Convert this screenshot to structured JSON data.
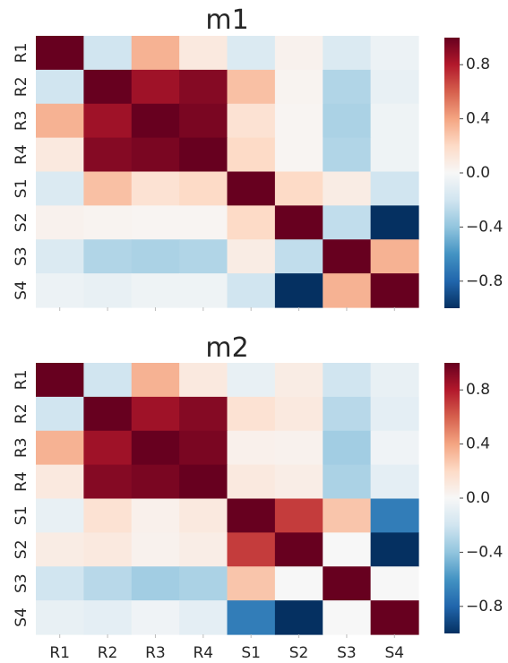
{
  "chart_data": [
    {
      "type": "heatmap",
      "title": "m1",
      "rows": [
        "R1",
        "R2",
        "R3",
        "R4",
        "S1",
        "S2",
        "S3",
        "S4"
      ],
      "cols": [
        "R1",
        "R2",
        "R3",
        "R4",
        "S1",
        "S2",
        "S3",
        "S4"
      ],
      "show_x_tick_labels": false,
      "values": [
        [
          1.0,
          -0.2,
          0.35,
          0.1,
          -0.15,
          0.04,
          -0.15,
          -0.06
        ],
        [
          -0.2,
          1.0,
          0.85,
          0.92,
          0.3,
          0.03,
          -0.3,
          -0.08
        ],
        [
          0.35,
          0.85,
          1.0,
          0.95,
          0.15,
          0.02,
          -0.32,
          -0.05
        ],
        [
          0.1,
          0.92,
          0.95,
          1.0,
          0.2,
          0.02,
          -0.3,
          -0.05
        ],
        [
          -0.15,
          0.3,
          0.15,
          0.2,
          1.0,
          0.2,
          0.08,
          -0.2
        ],
        [
          0.04,
          0.03,
          0.02,
          0.02,
          0.2,
          1.0,
          -0.25,
          -1.0
        ],
        [
          -0.15,
          -0.3,
          -0.32,
          -0.3,
          0.08,
          -0.25,
          1.0,
          0.35
        ],
        [
          -0.06,
          -0.08,
          -0.05,
          -0.05,
          -0.2,
          -1.0,
          0.35,
          1.0
        ]
      ],
      "vmin": -1,
      "vmax": 1,
      "colormap": "RdBu_r",
      "colorbar_ticks": [
        0.8,
        0.4,
        0.0,
        -0.4,
        -0.8
      ],
      "colorbar_tick_labels": [
        "0.8",
        "0.4",
        "0.0",
        "−0.4",
        "−0.8"
      ]
    },
    {
      "type": "heatmap",
      "title": "m2",
      "rows": [
        "R1",
        "R2",
        "R3",
        "R4",
        "S1",
        "S2",
        "S3",
        "S4"
      ],
      "cols": [
        "R1",
        "R2",
        "R3",
        "R4",
        "S1",
        "S2",
        "S3",
        "S4"
      ],
      "show_x_tick_labels": true,
      "values": [
        [
          1.0,
          -0.2,
          0.35,
          0.1,
          -0.08,
          0.08,
          -0.2,
          -0.08
        ],
        [
          -0.2,
          1.0,
          0.85,
          0.92,
          0.15,
          0.1,
          -0.28,
          -0.1
        ],
        [
          0.35,
          0.85,
          1.0,
          0.95,
          0.05,
          0.04,
          -0.35,
          -0.04
        ],
        [
          0.1,
          0.92,
          0.95,
          1.0,
          0.1,
          0.07,
          -0.32,
          -0.1
        ],
        [
          -0.08,
          0.15,
          0.05,
          0.1,
          1.0,
          0.7,
          0.28,
          -0.7
        ],
        [
          0.08,
          0.1,
          0.04,
          0.07,
          0.7,
          1.0,
          0.0,
          -1.0
        ],
        [
          -0.2,
          -0.28,
          -0.35,
          -0.32,
          0.28,
          0.0,
          1.0,
          0.0
        ],
        [
          -0.08,
          -0.1,
          -0.04,
          -0.1,
          -0.7,
          -1.0,
          0.0,
          1.0
        ]
      ],
      "vmin": -1,
      "vmax": 1,
      "colormap": "RdBu_r",
      "colorbar_ticks": [
        0.8,
        0.4,
        0.0,
        -0.4,
        -0.8
      ],
      "colorbar_tick_labels": [
        "0.8",
        "0.4",
        "0.0",
        "−0.4",
        "−0.8"
      ]
    }
  ]
}
